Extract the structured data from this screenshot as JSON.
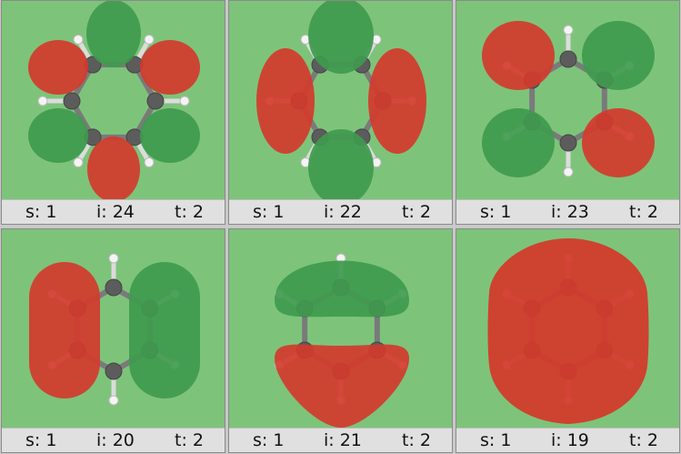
{
  "colors": {
    "background": "#7dc47a",
    "lobe_red": "#d23a2c",
    "lobe_green": "#3f9a4e",
    "bond": "#7a7a7a",
    "carbon": "#5c5c5c",
    "hydrogen": "#f4f4f4",
    "status_bar": "#e0e0e0"
  },
  "panels": [
    {
      "s": "s: 1",
      "i": "i: 24",
      "t": "t: 2",
      "orbital": "alternating-six-lobes"
    },
    {
      "s": "s: 1",
      "i": "i: 22",
      "t": "t: 2",
      "orbital": "four-lobes-vertical"
    },
    {
      "s": "s: 1",
      "i": "i: 23",
      "t": "t: 2",
      "orbital": "four-lobes-square"
    },
    {
      "s": "s: 1",
      "i": "i: 20",
      "t": "t: 2",
      "orbital": "two-lobes-left-right"
    },
    {
      "s": "s: 1",
      "i": "i: 21",
      "t": "t: 2",
      "orbital": "two-lobes-top-bottom"
    },
    {
      "s": "s: 1",
      "i": "i: 19",
      "t": "t: 2",
      "orbital": "single-ring-lobe"
    }
  ]
}
